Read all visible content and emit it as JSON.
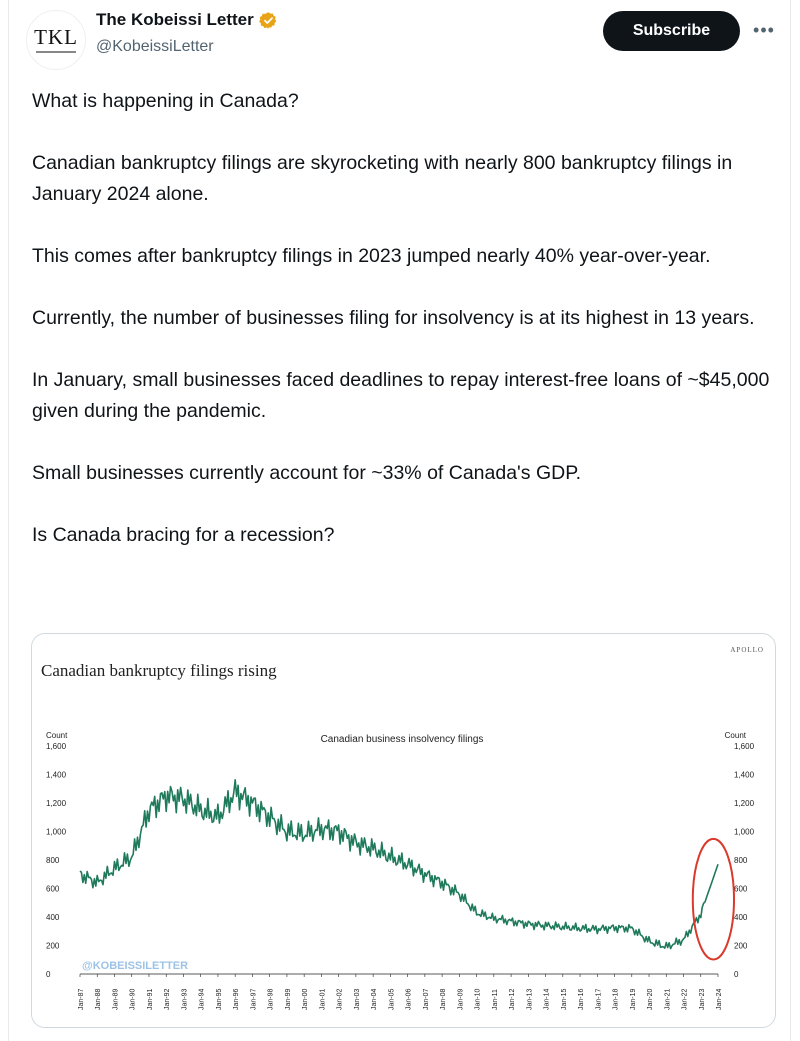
{
  "author": {
    "display_name": "The Kobeissi Letter",
    "handle": "@KobeissiLetter",
    "avatar_text": "TKL",
    "verified_color": "#e8a317"
  },
  "actions": {
    "subscribe_label": "Subscribe",
    "more_icon": "more-horizontal-icon"
  },
  "tweet": {
    "paragraphs": [
      "What is happening in Canada?",
      "Canadian bankruptcy filings are skyrocketing with nearly 800 bankruptcy filings in January 2024 alone.",
      "This comes after bankruptcy filings in 2023 jumped nearly 40% year-over-year.",
      "Currently, the number of businesses filing for insolvency is at its highest in 13 years.",
      "In January, small businesses faced deadlines to repay interest-free loans of ~$45,000 given during the pandemic.",
      "Small businesses currently account for ~33% of Canada's GDP.",
      "Is Canada bracing for a recession?"
    ]
  },
  "chart_data": {
    "type": "line",
    "title": "Canadian bankruptcy filings rising",
    "subtitle": "Canadian business insolvency filings",
    "brand": "APOLLO",
    "watermark": "@KOBEISSILETTER",
    "ylabel_left": "Count",
    "ylabel_right": "Count",
    "ylim": [
      0,
      1600
    ],
    "y_ticks": [
      "0",
      "200",
      "400",
      "600",
      "800",
      "1,000",
      "1,200",
      "1,400",
      "1,600"
    ],
    "x_ticks": [
      "Jan-87",
      "Jan-88",
      "Jan-89",
      "Jan-90",
      "Jan-91",
      "Jan-92",
      "Jan-93",
      "Jan-94",
      "Jan-95",
      "Jan-96",
      "Jan-97",
      "Jan-98",
      "Jan-99",
      "Jan-00",
      "Jan-01",
      "Jan-02",
      "Jan-03",
      "Jan-04",
      "Jan-05",
      "Jan-06",
      "Jan-07",
      "Jan-08",
      "Jan-09",
      "Jan-10",
      "Jan-11",
      "Jan-12",
      "Jan-13",
      "Jan-14",
      "Jan-15",
      "Jan-16",
      "Jan-17",
      "Jan-18",
      "Jan-19",
      "Jan-20",
      "Jan-21",
      "Jan-22",
      "Jan-23",
      "Jan-24"
    ],
    "series": [
      {
        "color": "#1f7a5c",
        "x": [
          "1987",
          "1988",
          "1989",
          "1990",
          "1991",
          "1992",
          "1993",
          "1994",
          "1995",
          "1996",
          "1997",
          "1998",
          "1999",
          "2000",
          "2001",
          "2002",
          "2003",
          "2004",
          "2005",
          "2006",
          "2007",
          "2008",
          "2009",
          "2010",
          "2011",
          "2012",
          "2013",
          "2014",
          "2015",
          "2016",
          "2017",
          "2018",
          "2019",
          "2020",
          "2021",
          "2022",
          "2023",
          "2024"
        ],
        "values": [
          700,
          640,
          740,
          820,
          1150,
          1250,
          1230,
          1150,
          1100,
          1280,
          1200,
          1100,
          1000,
          980,
          1020,
          1000,
          920,
          880,
          820,
          770,
          700,
          640,
          560,
          430,
          390,
          370,
          350,
          340,
          330,
          320,
          315,
          325,
          320,
          230,
          190,
          240,
          420,
          770
        ]
      }
    ],
    "annotation": {
      "type": "circle",
      "color": "#d93a2b",
      "around": "Jan-23 to Jan-24"
    },
    "grid": false
  }
}
